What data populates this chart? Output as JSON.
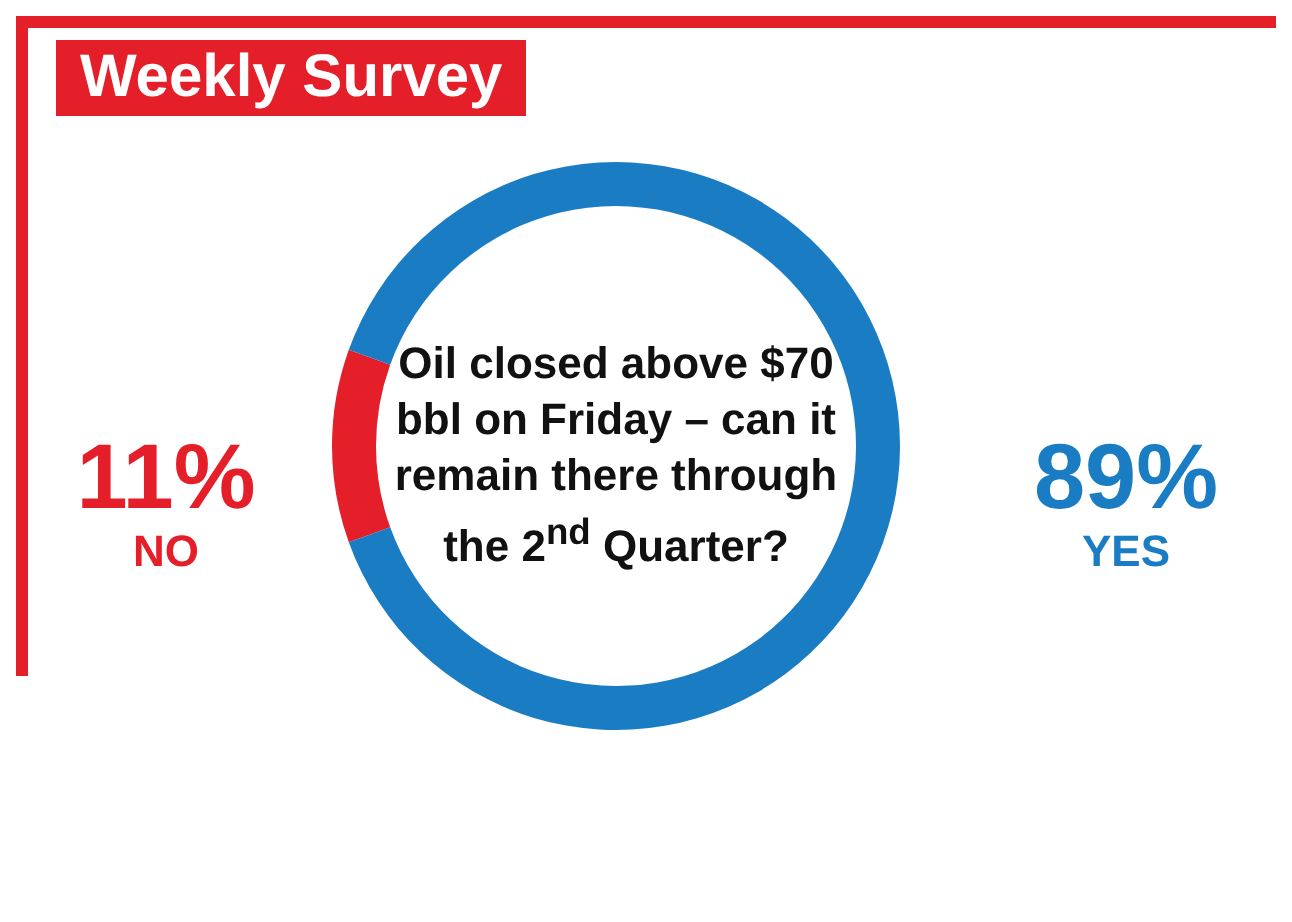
{
  "chart_data": {
    "type": "donut",
    "title": "Weekly Survey",
    "subtitle": "Oil closed above $70 bbl on Friday – can it remain there through the 2$^{nd}$ Quarter?",
    "categories": [
      "NO",
      "YES"
    ],
    "values": [
      11,
      89
    ],
    "colors": [
      "#e51f2a",
      "#1a7dc4"
    ],
    "value_labels": [
      "11%",
      "89%"
    ]
  }
}
